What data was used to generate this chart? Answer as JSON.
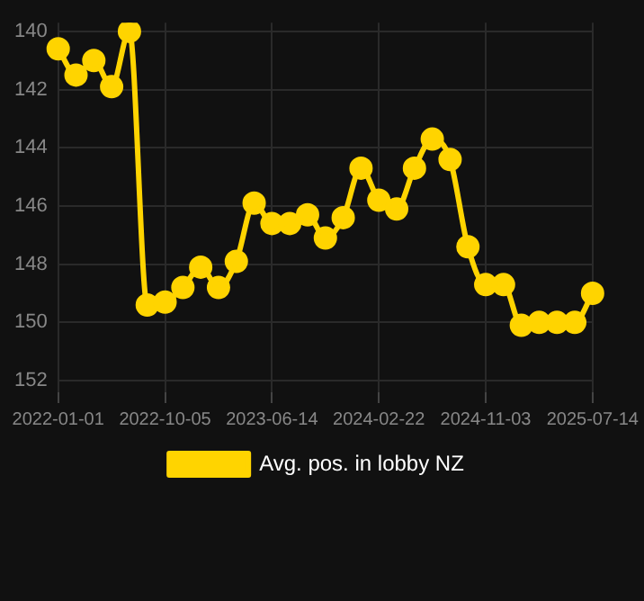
{
  "chart_data": {
    "type": "line",
    "categories": [
      "2022-01-01",
      null,
      null,
      null,
      null,
      null,
      "2022-10-05",
      null,
      null,
      null,
      null,
      null,
      "2023-06-14",
      null,
      null,
      null,
      null,
      null,
      "2024-02-22",
      null,
      null,
      null,
      null,
      null,
      "2024-11-03",
      null,
      null,
      null,
      null,
      null,
      "2025-07-14"
    ],
    "series": [
      {
        "name": "Avg. pos. in lobby NZ",
        "color": "#ffd400",
        "values": [
          140.6,
          141.5,
          141.0,
          141.9,
          140.0,
          149.4,
          149.3,
          148.8,
          148.1,
          148.8,
          147.9,
          145.9,
          146.6,
          146.6,
          146.3,
          147.1,
          146.4,
          144.7,
          145.8,
          146.1,
          144.7,
          143.7,
          144.4,
          147.4,
          148.7,
          148.7,
          150.1,
          150.0,
          150.0,
          150.0,
          149.0
        ]
      }
    ],
    "ylim": [
      152.4,
      139.7
    ],
    "yticks": [
      140,
      142,
      144,
      146,
      148,
      150,
      152
    ],
    "grid": true,
    "legend": "bottom",
    "marker": "circle",
    "line_style": "solid"
  }
}
